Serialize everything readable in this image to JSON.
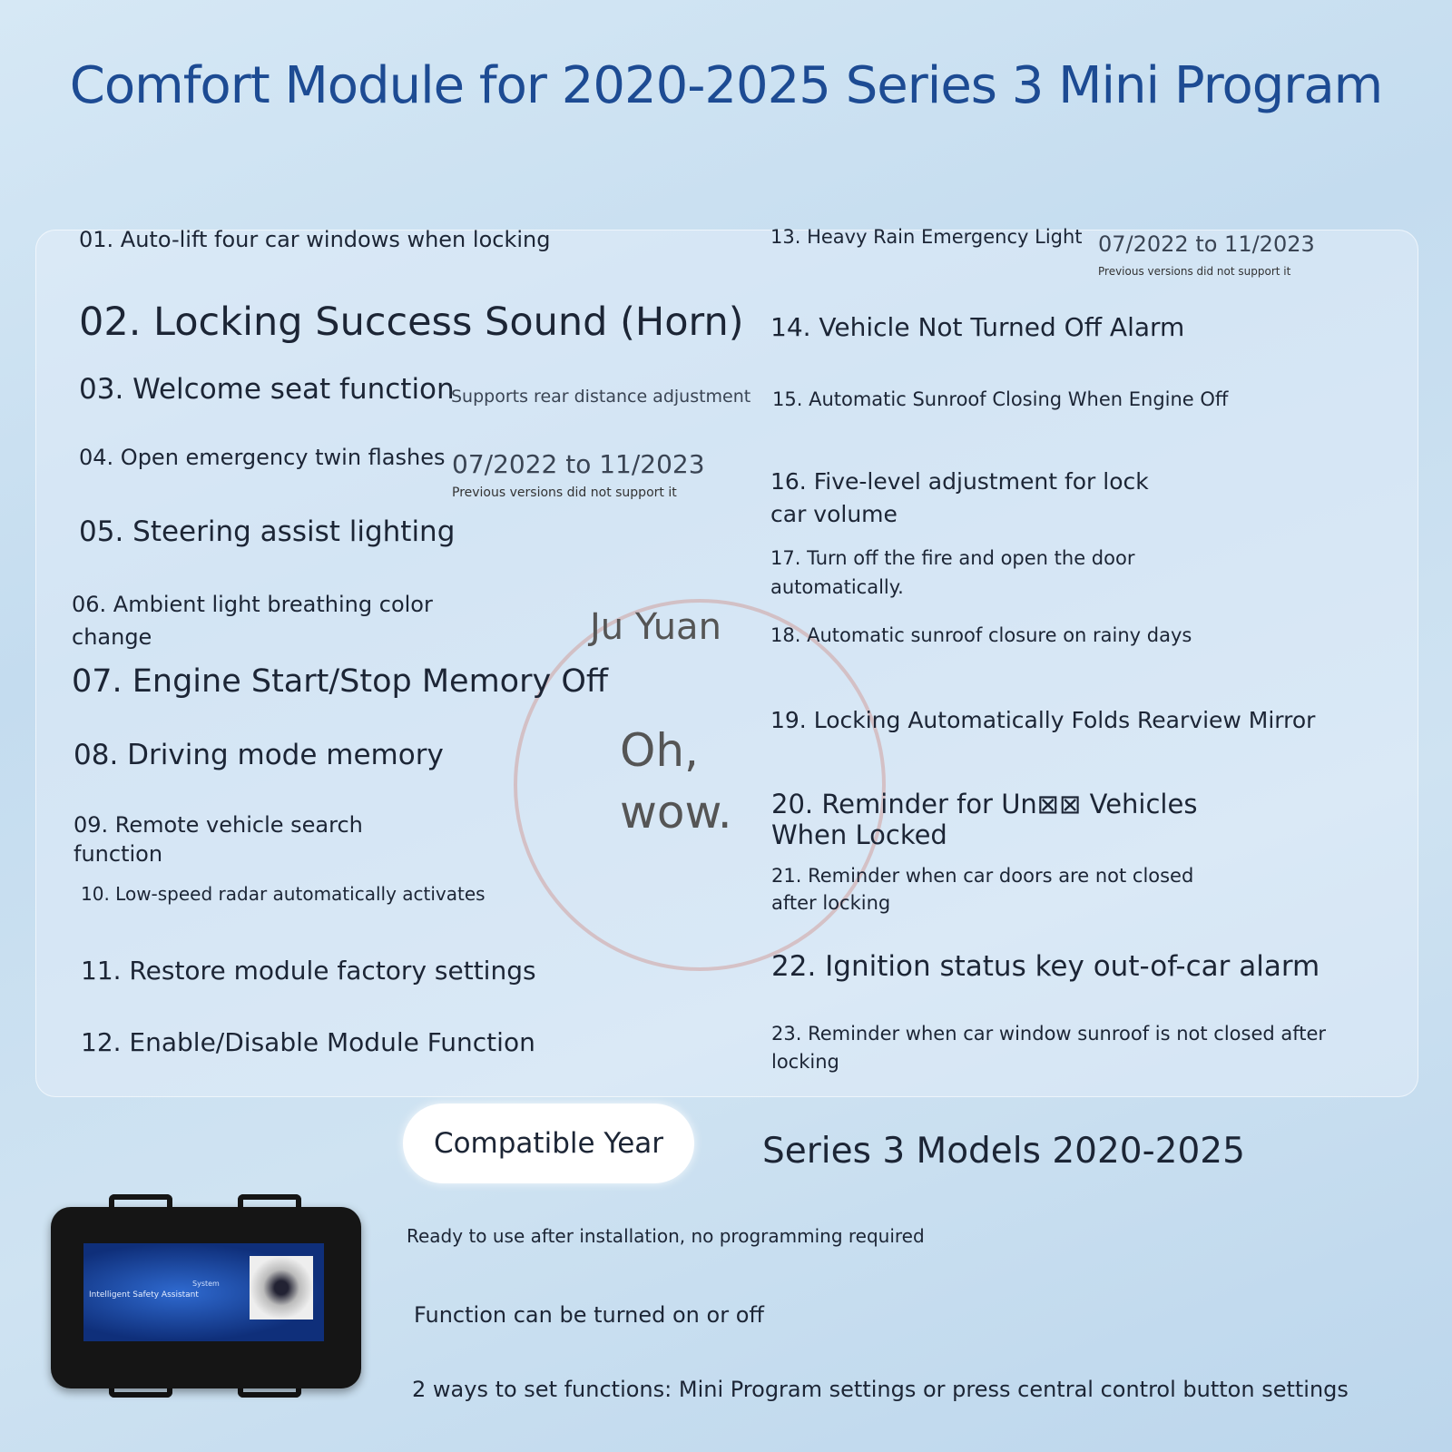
{
  "title": "Comfort Module for 2020-2025 Series 3 Mini Program",
  "left_features": [
    "01. Auto-lift four car windows when locking",
    "02. Locking Success Sound (Horn)",
    "03. Welcome seat function",
    "04. Open emergency twin flashes",
    "05. Steering assist lighting",
    "06. Ambient light breathing color change",
    "07. Engine Start/Stop Memory Off",
    "08. Driving mode memory",
    "09. Remote vehicle search function",
    "10. Low-speed radar automatically activates",
    "11. Restore module factory settings",
    "12. Enable/Disable Module Function"
  ],
  "right_features": [
    "13. Heavy Rain Emergency Light",
    "14. Vehicle Not Turned Off Alarm",
    "15. Automatic Sunroof Closing When Engine Off",
    "16. Five-level adjustment for lock car volume",
    "17. Turn off the fire and open the door automatically.",
    "18. Automatic sunroof closure on rainy days",
    "19. Locking Automatically Folds Rearview Mirror",
    "20. Reminder for Un⊠⊠ Vehicles When Locked",
    "21. Reminder when car doors are not closed after locking",
    "22. Ignition status key out-of-car alarm",
    "23. Reminder when car window sunroof is not closed after locking"
  ],
  "notes": {
    "f03_note": "Supports rear distance adjustment",
    "f04_date": "07/2022 to 11/2023",
    "f04_sub": "Previous versions did not support it",
    "f13_date": "07/2022 to 11/2023",
    "f13_sub": "Previous versions did not support it"
  },
  "watermark": {
    "brand": "Ju Yuan",
    "line1": "Oh,",
    "line2": "wow."
  },
  "compat": {
    "label": "Compatible Year",
    "value": "Series 3 Models 2020-2025"
  },
  "benefits": [
    "Ready to use after installation, no programming required",
    "Function can be turned on or off",
    "2 ways to set functions: Mini Program settings or press central control button settings"
  ],
  "device": {
    "label_line1": "Intelligent Safety Assistant",
    "label_line2": "System"
  },
  "colors": {
    "title": "#1d4b93",
    "text": "#1c2535"
  }
}
